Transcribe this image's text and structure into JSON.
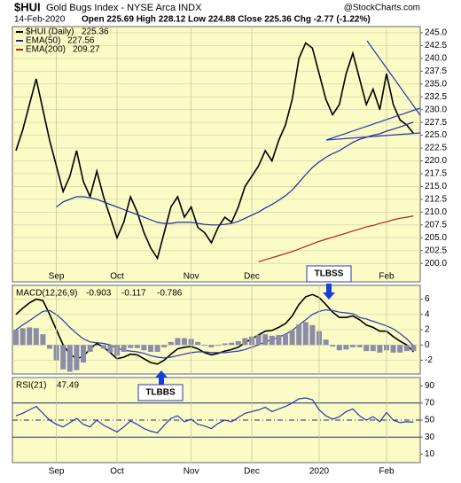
{
  "chart_data": [
    {
      "type": "line",
      "symbol": "$HUI",
      "title": "Gold Bugs Index - NYSE Arca INDX",
      "source": "@StockCharts.com",
      "date": "14-Feb-2020",
      "quote": "Open 225.69  High 228.12  Low 224.88  Close 225.36  Chg -2.77 (-1.22%)",
      "categories": [
        null,
        null,
        null,
        null,
        null,
        null,
        "Sep",
        null,
        null,
        null,
        null,
        null,
        null,
        null,
        null,
        "Oct",
        null,
        null,
        null,
        null,
        null,
        null,
        null,
        null,
        null,
        null,
        "Nov",
        null,
        null,
        null,
        null,
        null,
        null,
        null,
        null,
        "Dec",
        null,
        null,
        null,
        null,
        null,
        null,
        null,
        null,
        null,
        null,
        null,
        null,
        null,
        null,
        null,
        null,
        null,
        null,
        null,
        "Feb",
        null,
        null,
        null,
        null
      ],
      "ylim": [
        196.4,
        246.2
      ],
      "yticks": [
        {
          "value": 200,
          "label": "200.0"
        },
        {
          "value": 202.5,
          "label": "202.5"
        },
        {
          "value": 205,
          "label": "205.0"
        },
        {
          "value": 207.5,
          "label": "207.5"
        },
        {
          "value": 210,
          "label": "210.0"
        },
        {
          "value": 212.5,
          "label": "212.5"
        },
        {
          "value": 215,
          "label": "215.0"
        },
        {
          "value": 217.5,
          "label": "217.5"
        },
        {
          "value": 220,
          "label": "220.0"
        },
        {
          "value": 222.5,
          "label": "222.5"
        },
        {
          "value": 225,
          "label": "225.0"
        },
        {
          "value": 227.5,
          "label": "227.5"
        },
        {
          "value": 230,
          "label": "230.0"
        },
        {
          "value": 232.5,
          "label": "232.5"
        },
        {
          "value": 235,
          "label": "235.0"
        },
        {
          "value": 237.5,
          "label": "237.5"
        },
        {
          "value": 240,
          "label": "240.0"
        },
        {
          "value": 242.5,
          "label": "242.5"
        },
        {
          "value": 245,
          "label": "245.0"
        }
      ],
      "grid": true,
      "series": [
        {
          "name": "$HUI (Daily)",
          "color": "#000000",
          "values": [
            222,
            226,
            231,
            236,
            230,
            224,
            219,
            214,
            217,
            222,
            216,
            213,
            218,
            213,
            209,
            205,
            208,
            213,
            210,
            206,
            203,
            201,
            206,
            211,
            213,
            209,
            211,
            207,
            206,
            204,
            207,
            209,
            208,
            211,
            215,
            217,
            219,
            222,
            220,
            224,
            227,
            232,
            240,
            243,
            242,
            237,
            232,
            229,
            231,
            237,
            241,
            236,
            231,
            234,
            230,
            237,
            231,
            228,
            227,
            225.36
          ]
        },
        {
          "name": "EMA(50)",
          "color": "#1f2a9e",
          "values": [
            null,
            null,
            null,
            null,
            null,
            null,
            211,
            212,
            212.5,
            213,
            213,
            212.8,
            212.5,
            212,
            211.5,
            211,
            210.5,
            210,
            209.5,
            209,
            208.5,
            208,
            207.8,
            207.8,
            208,
            208,
            208,
            207.8,
            207.6,
            207.5,
            207.5,
            207.6,
            207.8,
            208.2,
            208.8,
            209.4,
            210,
            210.8,
            211.5,
            212.3,
            213.2,
            214.3,
            215.8,
            217.3,
            218.7,
            219.8,
            220.7,
            221.4,
            222,
            222.8,
            223.6,
            224.2,
            224.6,
            225,
            225.3,
            225.8,
            226.2,
            226.6,
            227.1,
            227.56
          ]
        },
        {
          "name": "EMA(200)",
          "color": "#b41e1e",
          "values": [
            null,
            null,
            null,
            null,
            null,
            null,
            null,
            null,
            null,
            null,
            null,
            null,
            null,
            null,
            null,
            null,
            null,
            null,
            null,
            null,
            null,
            null,
            null,
            null,
            null,
            null,
            null,
            null,
            null,
            null,
            null,
            null,
            null,
            null,
            null,
            null,
            200.3,
            200.7,
            201.1,
            201.5,
            201.9,
            202.3,
            202.8,
            203.3,
            203.8,
            204.3,
            204.7,
            205.1,
            205.5,
            205.9,
            206.3,
            206.7,
            207.1,
            207.4,
            207.8,
            208.1,
            208.5,
            208.8,
            209,
            209.27
          ]
        }
      ]
    },
    {
      "type": "line",
      "title": "MACD(12,26,9)",
      "ylim": [
        -3.8,
        7.8
      ],
      "yticks": [
        -2,
        0,
        2,
        4,
        6
      ],
      "grid": true,
      "annotations": [
        "TLBSS",
        "TLBBS"
      ],
      "series": [
        {
          "color": "#000000",
          "values": [
            4,
            4.8,
            5.5,
            6,
            5.8,
            4,
            2,
            0,
            -1.2,
            -1.8,
            -1.5,
            -0.5,
            0.2,
            -0.3,
            -1,
            -1.8,
            -1.6,
            -1.2,
            -1.3,
            -1.8,
            -2.3,
            -2.5,
            -2,
            -1.2,
            -0.5,
            -0.3,
            -0.2,
            -0.5,
            -1,
            -1.3,
            -1.1,
            -0.8,
            -0.6,
            -0.3,
            0.3,
            0.8,
            1.3,
            1.8,
            1.9,
            2.3,
            2.8,
            3.8,
            5.3,
            6.3,
            6.6,
            6.2,
            5.3,
            4.3,
            3.6,
            3.6,
            3.8,
            3.3,
            2.6,
            2.3,
            1.8,
            1.8,
            1.1,
            0.5,
            0,
            -0.903
          ]
        },
        {
          "color": "#2b35b0",
          "values": [
            2,
            2.6,
            3.2,
            3.8,
            4.4,
            4.5,
            4,
            3.2,
            2.3,
            1.5,
            0.8,
            0.4,
            0.3,
            0.2,
            0,
            -0.4,
            -0.7,
            -0.8,
            -0.9,
            -1.1,
            -1.4,
            -1.6,
            -1.7,
            -1.6,
            -1.4,
            -1.2,
            -1,
            -0.9,
            -0.9,
            -1,
            -1,
            -1,
            -0.9,
            -0.8,
            -0.6,
            -0.3,
            0,
            0.4,
            0.7,
            1,
            1.4,
            1.9,
            2.6,
            3.3,
            4,
            4.4,
            4.6,
            4.5,
            4.3,
            4.2,
            4.1,
            3.6,
            3.4,
            3.1,
            2.8,
            2.5,
            2.1,
            1.5,
            0.8,
            -0.117
          ]
        },
        {
          "type": "bar",
          "color": "#8c8ca8",
          "values": [
            2,
            2.2,
            2.3,
            2.2,
            1.4,
            -0.5,
            -2,
            -3.2,
            -3.5,
            -3.3,
            -2.3,
            -0.9,
            -0.1,
            -0.5,
            -1,
            -1.4,
            -0.9,
            -0.4,
            -0.4,
            -0.7,
            -0.9,
            -0.9,
            -0.3,
            0.4,
            0.9,
            0.9,
            0.8,
            0.4,
            -0.1,
            -0.3,
            -0.1,
            0.2,
            0.3,
            0.5,
            0.9,
            1.1,
            1.3,
            1.4,
            1.2,
            1.3,
            1.4,
            1.9,
            2.7,
            3,
            2.6,
            1.8,
            0.7,
            -0.2,
            -0.7,
            -0.6,
            -0.3,
            -0.3,
            -0.8,
            -0.8,
            -1,
            -0.7,
            -1,
            -1,
            -0.8,
            -0.786
          ]
        }
      ]
    },
    {
      "type": "line",
      "title": "RSI(21)",
      "ylim": [
        0,
        100
      ],
      "yticks": [
        10,
        30,
        50,
        70,
        90
      ],
      "hlines": [
        30,
        50,
        70
      ],
      "categories": [
        null,
        null,
        null,
        null,
        null,
        null,
        "Sep",
        null,
        null,
        null,
        null,
        null,
        null,
        null,
        null,
        "Oct",
        null,
        null,
        null,
        null,
        null,
        null,
        null,
        null,
        null,
        null,
        "Nov",
        null,
        null,
        null,
        null,
        null,
        null,
        null,
        null,
        "Dec",
        null,
        null,
        null,
        null,
        null,
        null,
        null,
        null,
        null,
        "2020",
        null,
        null,
        null,
        null,
        null,
        null,
        null,
        null,
        null,
        "Feb",
        null,
        null,
        null,
        null
      ],
      "series": [
        {
          "color": "#2b35b0",
          "values": [
            55,
            58,
            62,
            66,
            58,
            50,
            45,
            42,
            47,
            52,
            45,
            42,
            50,
            44,
            40,
            36,
            42,
            49,
            45,
            40,
            37,
            35,
            44,
            52,
            55,
            48,
            51,
            45,
            43,
            40,
            46,
            50,
            48,
            53,
            58,
            60,
            62,
            65,
            60,
            63,
            66,
            70,
            75,
            76,
            74,
            62,
            55,
            51,
            54,
            60,
            63,
            55,
            50,
            54,
            48,
            59,
            50,
            47,
            48,
            47.49
          ]
        }
      ]
    }
  ]
}
